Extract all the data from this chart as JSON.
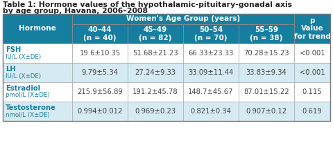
{
  "title_line1": "Table 1: Hormone values of the hypothalamic-pituitary-gonadal axis",
  "title_line2": "by age group, Havana, 2006–2008",
  "header_group": "Women's Age Group (years)",
  "col_headers": [
    "40–44\n(n = 40)",
    "45–49\n(n = 82)",
    "50–54\n(n = 70)",
    "55–59\n(n = 38)"
  ],
  "p_header": "p\nValue\nfor trend",
  "row_labels": [
    [
      "FSH",
      "IU/L (X±DE)"
    ],
    [
      "LH",
      "IU/L (X±DE)"
    ],
    [
      "Estradiol",
      "pmol/L (X±DE)"
    ],
    [
      "Testosterone",
      "nmol/L (X±DE)"
    ]
  ],
  "data": [
    [
      "19.6±10.35",
      "51.68±21.23",
      "66.33±23.33",
      "70.28±15.23",
      "<0.001"
    ],
    [
      "9.79±5.34",
      "27.24±9.33",
      "33.09±11.44",
      "33.83±9.34",
      "<0.001"
    ],
    [
      "215.9±56.89",
      "191.2±45.78",
      "148.7±45.67",
      "87.01±15.22",
      "0.115"
    ],
    [
      "0.994±0.012",
      "0.969±0.23",
      "0.821±0.34",
      "0.907±0.12",
      "0.619"
    ]
  ],
  "header_bg": "#167fa0",
  "header_text": "#ffffff",
  "row_even_bg": "#ffffff",
  "row_odd_bg": "#d6eaf4",
  "row_label_text": "#1a7fa0",
  "data_text": "#444444",
  "title_color": "#222222",
  "title_fontsize": 7.8,
  "header_fontsize": 7.5,
  "data_fontsize": 7.2,
  "label_fontsize": 7.2
}
